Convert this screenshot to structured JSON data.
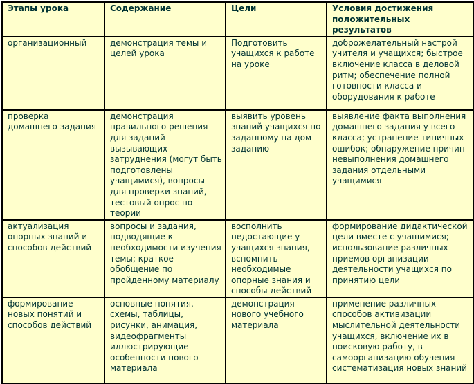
{
  "table": {
    "headers": [
      "Этапы урока",
      "Содержание",
      "Цели",
      "Условия достижения положительных результатов"
    ],
    "rows": [
      [
        "организационный",
        "демонстрация темы и целей урока",
        "Подготовить учащихся к работе на уроке",
        "доброжелательный настрой учителя и учащихся; быстрое включение класса в деловой ритм; обеспечение полной готовности класса и оборудования к работе"
      ],
      [
        "проверка домашнего задания",
        "демонстрация правильного решения для заданий вызывающих затруднения (могут быть подготовлены учащимися), вопросы для проверки знаний, тестовый опрос по теории",
        "выявить уровень знаний учащихся по заданному на дом заданию",
        "выявление факта выполнения домашнего задания у всего класса; устранение типичных ошибок; обнаружение причин невыполнения домашнего задания отдельными учащимися"
      ],
      [
        "актуализация опорных знаний и способов действий",
        "вопросы и задания, подводящие к необходимости изучения темы; краткое обобщение по пройденному материалу",
        "восполнить недостающие у учащихся знания, вспомнить необходимые опорные знания и способы действий",
        "формирование дидактической цели вместе с учащимися; использование различных приемов организации деятельности учащихся по принятию цели"
      ],
      [
        "формирование новых понятий и способов действий",
        "основные понятия, схемы, таблицы, рисунки, анимация, видеофрагменты иллюстрирующие особенности нового материала",
        "демонстрация нового учебного материала",
        "применение различных способов активизации мыслительной деятельности учащихся, включение их в поисковую работу, в самоорганизацию обучения систематизация новых знаний"
      ]
    ]
  },
  "colors": {
    "background": "#ffffcc",
    "text": "#003333",
    "border": "#000000"
  }
}
